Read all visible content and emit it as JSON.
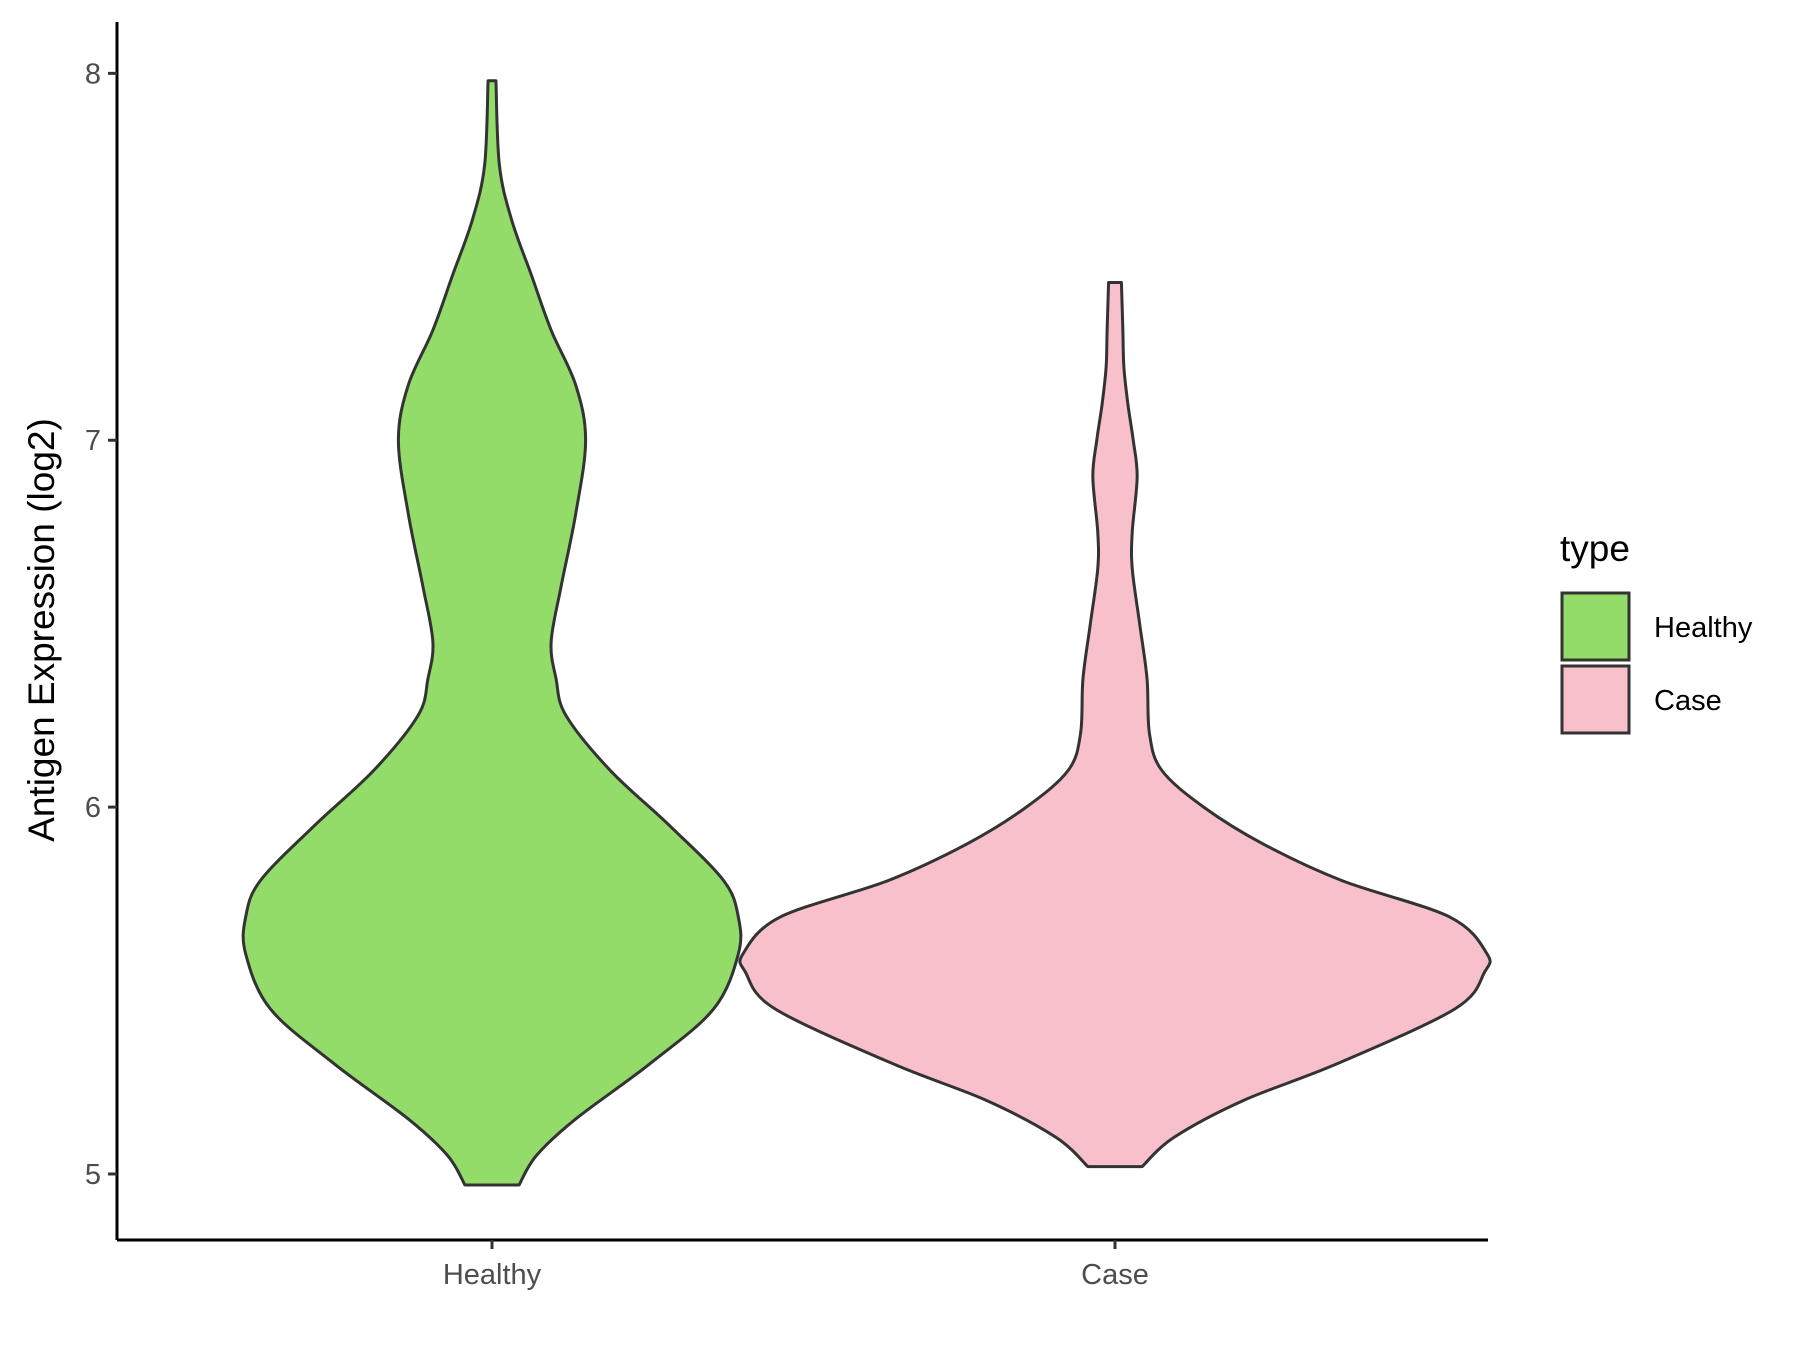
{
  "chart_data": {
    "type": "violin",
    "ylabel": "Antigen Expression (log2)",
    "xlabel": "",
    "ylim": [
      4.82,
      8.14
    ],
    "yticks": [
      5,
      6,
      7,
      8
    ],
    "categories": [
      "Healthy",
      "Case"
    ],
    "legend": {
      "title": "type",
      "position": "right",
      "entries": [
        {
          "label": "Healthy",
          "color": "#93DC6A"
        },
        {
          "label": "Case",
          "color": "#F7C0CB"
        }
      ]
    },
    "grid": false,
    "series": [
      {
        "category": "Healthy",
        "color": "#93DC6A",
        "min": 4.97,
        "max": 7.98,
        "density": [
          [
            4.97,
            0.055
          ],
          [
            5.05,
            0.09
          ],
          [
            5.15,
            0.17
          ],
          [
            5.3,
            0.32
          ],
          [
            5.45,
            0.45
          ],
          [
            5.6,
            0.5
          ],
          [
            5.7,
            0.5
          ],
          [
            5.8,
            0.47
          ],
          [
            5.95,
            0.36
          ],
          [
            6.1,
            0.24
          ],
          [
            6.25,
            0.15
          ],
          [
            6.35,
            0.13
          ],
          [
            6.45,
            0.12
          ],
          [
            6.6,
            0.14
          ],
          [
            6.8,
            0.17
          ],
          [
            7.0,
            0.19
          ],
          [
            7.15,
            0.17
          ],
          [
            7.3,
            0.12
          ],
          [
            7.45,
            0.08
          ],
          [
            7.6,
            0.04
          ],
          [
            7.75,
            0.015
          ],
          [
            7.98,
            0.008
          ]
        ]
      },
      {
        "category": "Case",
        "color": "#F7C0CB",
        "min": 5.02,
        "max": 7.43,
        "density": [
          [
            5.02,
            0.055
          ],
          [
            5.1,
            0.12
          ],
          [
            5.2,
            0.26
          ],
          [
            5.3,
            0.45
          ],
          [
            5.45,
            0.69
          ],
          [
            5.55,
            0.75
          ],
          [
            5.6,
            0.755
          ],
          [
            5.7,
            0.68
          ],
          [
            5.8,
            0.46
          ],
          [
            5.9,
            0.3
          ],
          [
            6.0,
            0.18
          ],
          [
            6.1,
            0.095
          ],
          [
            6.2,
            0.07
          ],
          [
            6.35,
            0.065
          ],
          [
            6.5,
            0.05
          ],
          [
            6.65,
            0.035
          ],
          [
            6.75,
            0.035
          ],
          [
            6.9,
            0.045
          ],
          [
            7.0,
            0.037
          ],
          [
            7.1,
            0.026
          ],
          [
            7.2,
            0.018
          ],
          [
            7.3,
            0.016
          ],
          [
            7.43,
            0.013
          ]
        ]
      }
    ]
  }
}
